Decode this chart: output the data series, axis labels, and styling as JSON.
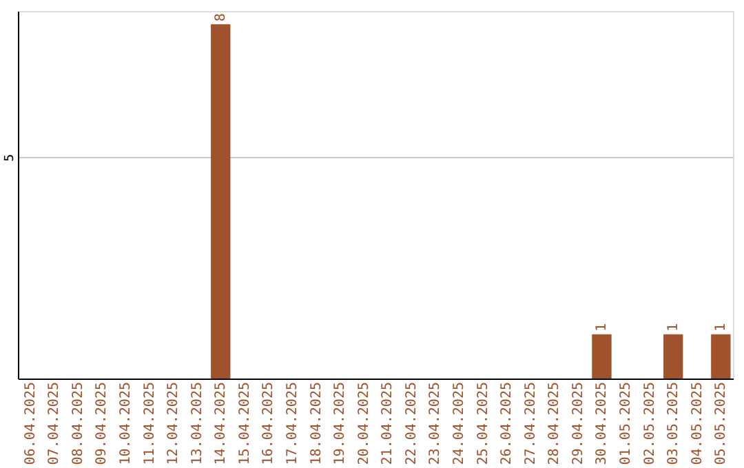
{
  "chart_data": {
    "type": "bar",
    "categories": [
      "06.04.2025",
      "07.04.2025",
      "08.04.2025",
      "09.04.2025",
      "10.04.2025",
      "11.04.2025",
      "12.04.2025",
      "13.04.2025",
      "14.04.2025",
      "15.04.2025",
      "16.04.2025",
      "17.04.2025",
      "18.04.2025",
      "19.04.2025",
      "20.04.2025",
      "21.04.2025",
      "22.04.2025",
      "23.04.2025",
      "24.04.2025",
      "25.04.2025",
      "26.04.2025",
      "27.04.2025",
      "28.04.2025",
      "29.04.2025",
      "30.04.2025",
      "01.05.2025",
      "02.05.2025",
      "03.05.2025",
      "04.05.2025",
      "05.05.2025"
    ],
    "values": [
      0,
      0,
      0,
      0,
      0,
      0,
      0,
      0,
      8,
      0,
      0,
      0,
      0,
      0,
      0,
      0,
      0,
      0,
      0,
      0,
      0,
      0,
      0,
      0,
      1,
      0,
      0,
      1,
      0,
      1
    ],
    "value_labels": [
      null,
      null,
      null,
      null,
      null,
      null,
      null,
      null,
      "8",
      null,
      null,
      null,
      null,
      null,
      null,
      null,
      null,
      null,
      null,
      null,
      null,
      null,
      null,
      null,
      "1",
      null,
      null,
      "1",
      null,
      "1"
    ],
    "color": "#a0522d",
    "ylim": [
      0,
      8.3
    ],
    "yticks": [
      5
    ],
    "grid": "y"
  }
}
